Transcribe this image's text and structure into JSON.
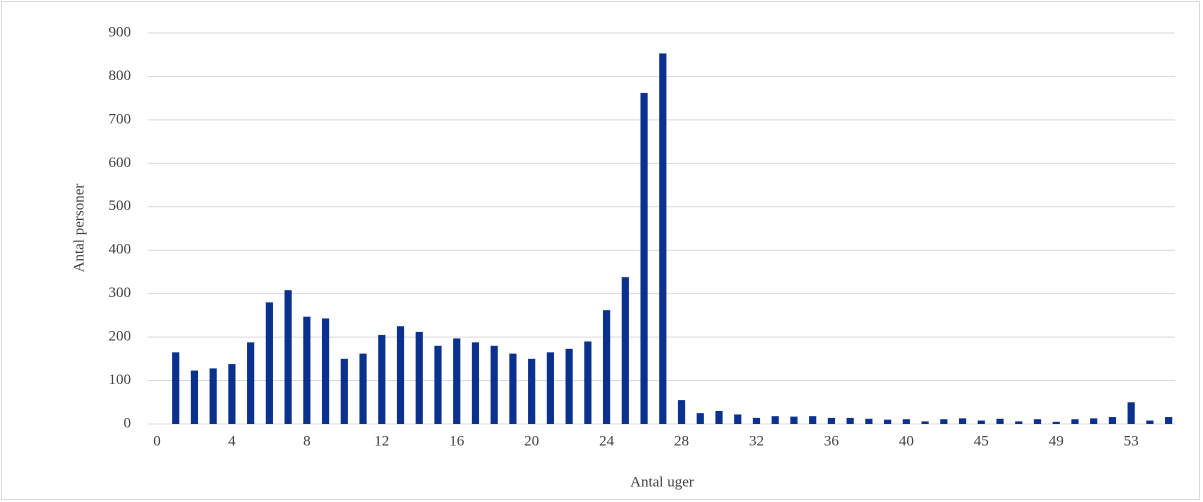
{
  "chart_data": {
    "type": "bar",
    "x_label": "Antal uger",
    "y_label": "Antal personer",
    "categories": [
      "0",
      null,
      null,
      null,
      "4",
      null,
      null,
      null,
      "8",
      null,
      null,
      null,
      "12",
      null,
      null,
      null,
      "16",
      null,
      null,
      null,
      "20",
      null,
      null,
      null,
      "24",
      null,
      null,
      null,
      "28",
      null,
      null,
      null,
      "32",
      null,
      null,
      null,
      "36",
      null,
      null,
      null,
      "40",
      null,
      null,
      null,
      "45",
      null,
      null,
      null,
      "49",
      null,
      null,
      null,
      "53",
      null,
      null
    ],
    "values": [
      0,
      165,
      123,
      128,
      138,
      188,
      280,
      308,
      247,
      243,
      150,
      162,
      205,
      225,
      212,
      180,
      197,
      188,
      180,
      162,
      150,
      165,
      173,
      190,
      262,
      338,
      762,
      853,
      55,
      25,
      30,
      22,
      14,
      18,
      17,
      18,
      14,
      14,
      12,
      10,
      11,
      6,
      11,
      13,
      8,
      12,
      6,
      11,
      5,
      11,
      13,
      16,
      50,
      8,
      16
    ],
    "color": "#0b318f",
    "ylim": [
      0,
      900
    ],
    "yticks": [
      0,
      100,
      200,
      300,
      400,
      500,
      600,
      700,
      800,
      900
    ],
    "grid": true
  }
}
